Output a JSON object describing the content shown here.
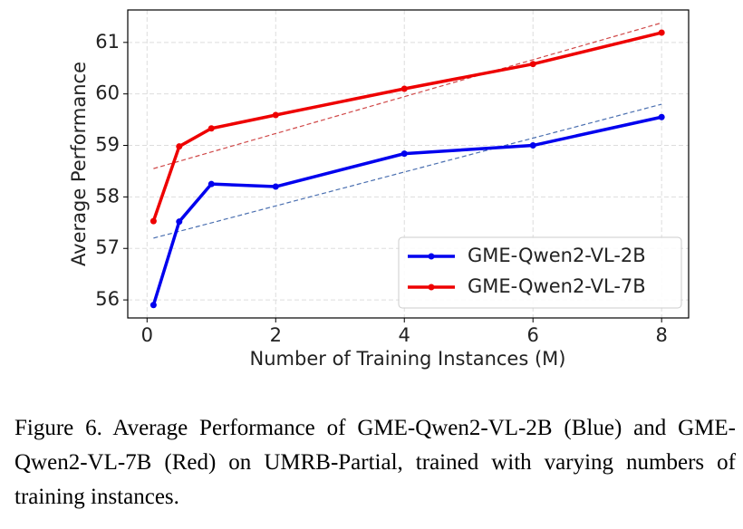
{
  "chart_data": {
    "type": "line",
    "xlabel": "Number of Training Instances (M)",
    "ylabel": "Average Performance",
    "x": [
      0.1,
      0.5,
      1,
      2,
      4,
      6,
      8
    ],
    "series": [
      {
        "name": "GME-Qwen2-VL-2B",
        "color": "#0000ee",
        "values": [
          55.9,
          57.52,
          58.25,
          58.2,
          58.84,
          59.0,
          59.55
        ]
      },
      {
        "name": "GME-Qwen2-VL-7B",
        "color": "#ee0000",
        "values": [
          57.53,
          58.98,
          59.33,
          59.59,
          60.1,
          60.58,
          61.19
        ]
      }
    ],
    "trendlines": [
      {
        "color": "#4a6fb0",
        "x": [
          0.1,
          8
        ],
        "values": [
          57.2,
          59.8
        ]
      },
      {
        "color": "#d04848",
        "x": [
          0.1,
          8
        ],
        "values": [
          58.55,
          61.38
        ]
      }
    ],
    "xlim": [
      -0.3,
      8.42
    ],
    "ylim": [
      55.65,
      61.63
    ],
    "xticks": [
      0,
      2,
      4,
      6,
      8
    ],
    "yticks": [
      56,
      57,
      58,
      59,
      60,
      61
    ],
    "grid": true,
    "legend": "lower right"
  },
  "caption": "Figure 6. Average Performance of GME-Qwen2-VL-2B (Blue) and GME-Qwen2-VL-7B (Red) on UMRB-Partial, trained with varying numbers of training instances."
}
